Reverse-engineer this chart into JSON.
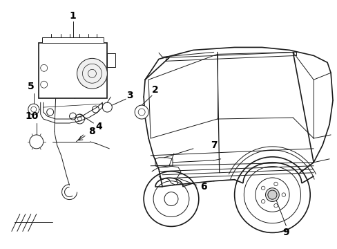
{
  "bg_color": "#ffffff",
  "line_color": "#1a1a1a",
  "label_color": "#000000",
  "figsize": [
    4.89,
    3.6
  ],
  "dpi": 100,
  "lw_main": 1.2,
  "lw_thin": 0.7,
  "lw_med": 0.9
}
